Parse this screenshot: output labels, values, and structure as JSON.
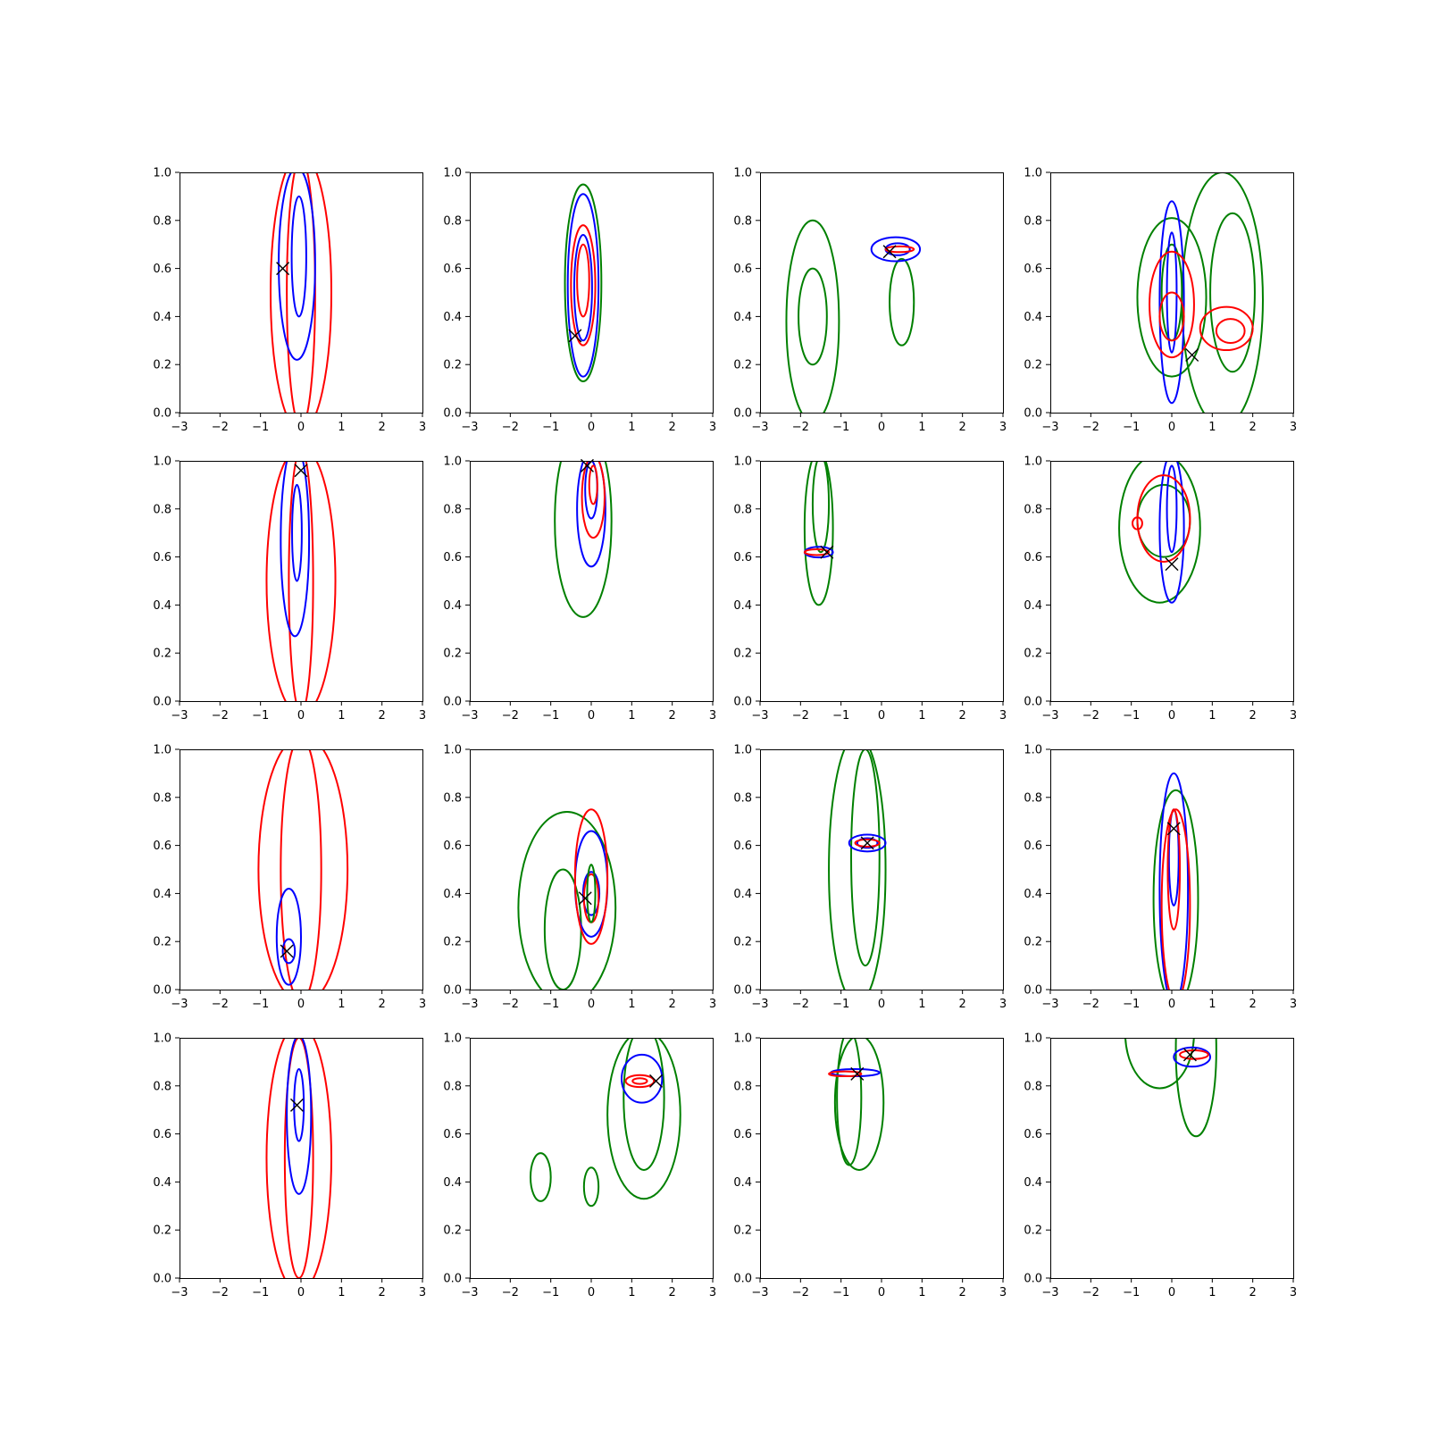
{
  "chart_data": {
    "type": "contour-grid",
    "rows": 4,
    "cols": 4,
    "xlim": [
      -3,
      3
    ],
    "ylim": [
      0,
      1
    ],
    "xticks": [
      "−3",
      "−2",
      "−1",
      "0",
      "1",
      "2",
      "3"
    ],
    "yticks": [
      "0.0",
      "0.2",
      "0.4",
      "0.6",
      "0.8",
      "1.0"
    ],
    "colors": {
      "blue": "#0000ff",
      "red": "#ff0000",
      "green": "#008000",
      "marker": "#000000"
    },
    "panels": [
      {
        "marker": [
          -0.45,
          0.6
        ],
        "contours": [
          {
            "color": "red",
            "cx": 0.0,
            "cy": 0.5,
            "rx": 0.75,
            "ry": 0.58
          },
          {
            "color": "red",
            "cx": 0.0,
            "cy": 0.5,
            "rx": 0.35,
            "ry": 0.56
          },
          {
            "color": "blue",
            "cx": -0.1,
            "cy": 0.62,
            "rx": 0.45,
            "ry": 0.4
          },
          {
            "color": "blue",
            "cx": -0.05,
            "cy": 0.65,
            "rx": 0.18,
            "ry": 0.25
          }
        ]
      },
      {
        "marker": [
          -0.4,
          0.32
        ],
        "contours": [
          {
            "color": "green",
            "cx": -0.2,
            "cy": 0.54,
            "rx": 0.45,
            "ry": 0.41
          },
          {
            "color": "blue",
            "cx": -0.2,
            "cy": 0.53,
            "rx": 0.38,
            "ry": 0.38
          },
          {
            "color": "blue",
            "cx": -0.2,
            "cy": 0.52,
            "rx": 0.22,
            "ry": 0.22
          },
          {
            "color": "red",
            "cx": -0.2,
            "cy": 0.53,
            "rx": 0.3,
            "ry": 0.25
          },
          {
            "color": "red",
            "cx": -0.2,
            "cy": 0.55,
            "rx": 0.15,
            "ry": 0.15
          }
        ]
      },
      {
        "marker": [
          0.2,
          0.67
        ],
        "contours": [
          {
            "color": "green",
            "cx": -1.7,
            "cy": 0.38,
            "rx": 0.65,
            "ry": 0.42
          },
          {
            "color": "green",
            "cx": -1.7,
            "cy": 0.4,
            "rx": 0.35,
            "ry": 0.2
          },
          {
            "color": "green",
            "cx": 0.5,
            "cy": 0.46,
            "rx": 0.3,
            "ry": 0.18
          },
          {
            "color": "blue",
            "cx": 0.35,
            "cy": 0.68,
            "rx": 0.6,
            "ry": 0.05
          },
          {
            "color": "blue",
            "cx": 0.4,
            "cy": 0.68,
            "rx": 0.3,
            "ry": 0.025
          },
          {
            "color": "red",
            "cx": 0.45,
            "cy": 0.68,
            "rx": 0.35,
            "ry": 0.012
          }
        ]
      },
      {
        "marker": [
          0.5,
          0.24
        ],
        "contours": [
          {
            "color": "green",
            "cx": 1.25,
            "cy": 0.47,
            "rx": 1.0,
            "ry": 0.53
          },
          {
            "color": "green",
            "cx": 1.5,
            "cy": 0.5,
            "rx": 0.55,
            "ry": 0.33
          },
          {
            "color": "green",
            "cx": 0.0,
            "cy": 0.48,
            "rx": 0.85,
            "ry": 0.33
          },
          {
            "color": "green",
            "cx": 0.0,
            "cy": 0.5,
            "rx": 0.25,
            "ry": 0.2
          },
          {
            "color": "blue",
            "cx": 0.0,
            "cy": 0.46,
            "rx": 0.3,
            "ry": 0.42
          },
          {
            "color": "blue",
            "cx": 0.0,
            "cy": 0.5,
            "rx": 0.12,
            "ry": 0.25
          },
          {
            "color": "red",
            "cx": 0.0,
            "cy": 0.45,
            "rx": 0.55,
            "ry": 0.22
          },
          {
            "color": "red",
            "cx": 0.0,
            "cy": 0.4,
            "rx": 0.3,
            "ry": 0.1
          },
          {
            "color": "red",
            "cx": 1.35,
            "cy": 0.35,
            "rx": 0.65,
            "ry": 0.09
          },
          {
            "color": "red",
            "cx": 1.45,
            "cy": 0.34,
            "rx": 0.35,
            "ry": 0.05
          }
        ]
      },
      {
        "marker": [
          0.0,
          0.96
        ],
        "contours": [
          {
            "color": "red",
            "cx": 0.0,
            "cy": 0.5,
            "rx": 0.85,
            "ry": 0.56
          },
          {
            "color": "red",
            "cx": 0.0,
            "cy": 0.5,
            "rx": 0.3,
            "ry": 0.55
          },
          {
            "color": "blue",
            "cx": -0.15,
            "cy": 0.67,
            "rx": 0.35,
            "ry": 0.4
          },
          {
            "color": "blue",
            "cx": -0.1,
            "cy": 0.7,
            "rx": 0.12,
            "ry": 0.2
          }
        ]
      },
      {
        "marker": [
          -0.1,
          0.98
        ],
        "contours": [
          {
            "color": "green",
            "cx": -0.2,
            "cy": 0.75,
            "rx": 0.7,
            "ry": 0.4
          },
          {
            "color": "blue",
            "cx": 0.0,
            "cy": 0.8,
            "rx": 0.35,
            "ry": 0.24
          },
          {
            "color": "blue",
            "cx": 0.0,
            "cy": 0.88,
            "rx": 0.15,
            "ry": 0.12
          },
          {
            "color": "red",
            "cx": 0.05,
            "cy": 0.85,
            "rx": 0.28,
            "ry": 0.17
          },
          {
            "color": "red",
            "cx": 0.05,
            "cy": 0.9,
            "rx": 0.1,
            "ry": 0.08
          }
        ]
      },
      {
        "marker": [
          -1.35,
          0.62
        ],
        "contours": [
          {
            "color": "green",
            "cx": -1.55,
            "cy": 0.72,
            "rx": 0.35,
            "ry": 0.32
          },
          {
            "color": "green",
            "cx": -1.5,
            "cy": 0.82,
            "rx": 0.2,
            "ry": 0.2
          },
          {
            "color": "blue",
            "cx": -1.55,
            "cy": 0.62,
            "rx": 0.35,
            "ry": 0.022
          },
          {
            "color": "red",
            "cx": -1.6,
            "cy": 0.62,
            "rx": 0.3,
            "ry": 0.012
          }
        ]
      },
      {
        "marker": [
          0.0,
          0.57
        ],
        "contours": [
          {
            "color": "green",
            "cx": -0.3,
            "cy": 0.72,
            "rx": 1.0,
            "ry": 0.31
          },
          {
            "color": "green",
            "cx": -0.2,
            "cy": 0.75,
            "rx": 0.65,
            "ry": 0.15
          },
          {
            "color": "blue",
            "cx": 0.0,
            "cy": 0.72,
            "rx": 0.3,
            "ry": 0.31
          },
          {
            "color": "blue",
            "cx": 0.0,
            "cy": 0.8,
            "rx": 0.12,
            "ry": 0.18
          },
          {
            "color": "red",
            "cx": -0.2,
            "cy": 0.76,
            "rx": 0.65,
            "ry": 0.18
          },
          {
            "color": "red",
            "cx": -0.85,
            "cy": 0.74,
            "rx": 0.12,
            "ry": 0.025
          }
        ]
      },
      {
        "marker": [
          -0.35,
          0.16
        ],
        "contours": [
          {
            "color": "red",
            "cx": 0.05,
            "cy": 0.5,
            "rx": 1.1,
            "ry": 0.56
          },
          {
            "color": "red",
            "cx": 0.0,
            "cy": 0.5,
            "rx": 0.5,
            "ry": 0.55
          },
          {
            "color": "blue",
            "cx": -0.3,
            "cy": 0.22,
            "rx": 0.3,
            "ry": 0.2
          },
          {
            "color": "blue",
            "cx": -0.3,
            "cy": 0.16,
            "rx": 0.15,
            "ry": 0.05
          }
        ]
      },
      {
        "marker": [
          -0.15,
          0.38
        ],
        "contours": [
          {
            "color": "green",
            "cx": -0.6,
            "cy": 0.34,
            "rx": 1.2,
            "ry": 0.4
          },
          {
            "color": "green",
            "cx": -0.7,
            "cy": 0.25,
            "rx": 0.45,
            "ry": 0.25
          },
          {
            "color": "blue",
            "cx": 0.0,
            "cy": 0.44,
            "rx": 0.4,
            "ry": 0.22
          },
          {
            "color": "blue",
            "cx": 0.0,
            "cy": 0.4,
            "rx": 0.2,
            "ry": 0.09
          },
          {
            "color": "red",
            "cx": 0.0,
            "cy": 0.47,
            "rx": 0.4,
            "ry": 0.28
          },
          {
            "color": "red",
            "cx": 0.0,
            "cy": 0.38,
            "rx": 0.18,
            "ry": 0.1
          },
          {
            "color": "green",
            "cx": 0.0,
            "cy": 0.4,
            "rx": 0.1,
            "ry": 0.12
          }
        ]
      },
      {
        "marker": [
          -0.35,
          0.61
        ],
        "contours": [
          {
            "color": "green",
            "cx": -0.6,
            "cy": 0.5,
            "rx": 0.7,
            "ry": 0.56
          },
          {
            "color": "green",
            "cx": -0.4,
            "cy": 0.55,
            "rx": 0.35,
            "ry": 0.45
          },
          {
            "color": "blue",
            "cx": -0.35,
            "cy": 0.61,
            "rx": 0.45,
            "ry": 0.035
          },
          {
            "color": "blue",
            "cx": -0.35,
            "cy": 0.61,
            "rx": 0.25,
            "ry": 0.02
          },
          {
            "color": "red",
            "cx": -0.35,
            "cy": 0.61,
            "rx": 0.3,
            "ry": 0.015
          }
        ]
      },
      {
        "marker": [
          0.05,
          0.67
        ],
        "contours": [
          {
            "color": "green",
            "cx": 0.1,
            "cy": 0.38,
            "rx": 0.55,
            "ry": 0.45
          },
          {
            "color": "blue",
            "cx": 0.05,
            "cy": 0.42,
            "rx": 0.35,
            "ry": 0.48
          },
          {
            "color": "blue",
            "cx": 0.05,
            "cy": 0.55,
            "rx": 0.12,
            "ry": 0.2
          },
          {
            "color": "red",
            "cx": 0.1,
            "cy": 0.35,
            "rx": 0.35,
            "ry": 0.4
          },
          {
            "color": "red",
            "cx": 0.05,
            "cy": 0.5,
            "rx": 0.15,
            "ry": 0.25
          }
        ]
      },
      {
        "marker": [
          -0.1,
          0.72
        ],
        "contours": [
          {
            "color": "red",
            "cx": -0.05,
            "cy": 0.5,
            "rx": 0.8,
            "ry": 0.56
          },
          {
            "color": "red",
            "cx": -0.05,
            "cy": 0.5,
            "rx": 0.35,
            "ry": 0.5
          },
          {
            "color": "blue",
            "cx": -0.05,
            "cy": 0.68,
            "rx": 0.3,
            "ry": 0.33
          },
          {
            "color": "blue",
            "cx": -0.05,
            "cy": 0.72,
            "rx": 0.12,
            "ry": 0.15
          }
        ]
      },
      {
        "marker": [
          1.6,
          0.82
        ],
        "contours": [
          {
            "color": "green",
            "cx": 1.3,
            "cy": 0.68,
            "rx": 0.9,
            "ry": 0.35
          },
          {
            "color": "green",
            "cx": 1.3,
            "cy": 0.75,
            "rx": 0.5,
            "ry": 0.3
          },
          {
            "color": "green",
            "cx": -1.25,
            "cy": 0.42,
            "rx": 0.25,
            "ry": 0.1
          },
          {
            "color": "green",
            "cx": 0.0,
            "cy": 0.38,
            "rx": 0.18,
            "ry": 0.08
          },
          {
            "color": "blue",
            "cx": 1.25,
            "cy": 0.83,
            "rx": 0.5,
            "ry": 0.1
          },
          {
            "color": "red",
            "cx": 1.2,
            "cy": 0.82,
            "rx": 0.35,
            "ry": 0.025
          },
          {
            "color": "red",
            "cx": 1.2,
            "cy": 0.82,
            "rx": 0.18,
            "ry": 0.012
          }
        ]
      },
      {
        "marker": [
          -0.6,
          0.85
        ],
        "contours": [
          {
            "color": "green",
            "cx": -0.55,
            "cy": 0.73,
            "rx": 0.6,
            "ry": 0.28
          },
          {
            "color": "green",
            "cx": -0.8,
            "cy": 0.75,
            "rx": 0.3,
            "ry": 0.28
          },
          {
            "color": "blue",
            "cx": -0.65,
            "cy": 0.855,
            "rx": 0.6,
            "ry": 0.015
          },
          {
            "color": "red",
            "cx": -0.9,
            "cy": 0.85,
            "rx": 0.4,
            "ry": 0.01
          }
        ]
      },
      {
        "marker": [
          0.45,
          0.93
        ],
        "contours": [
          {
            "color": "green",
            "cx": -0.3,
            "cy": 1.02,
            "rx": 0.85,
            "ry": 0.23
          },
          {
            "color": "green",
            "cx": 0.6,
            "cy": 0.95,
            "rx": 0.5,
            "ry": 0.36
          },
          {
            "color": "blue",
            "cx": 0.5,
            "cy": 0.92,
            "rx": 0.45,
            "ry": 0.04
          },
          {
            "color": "red",
            "cx": 0.55,
            "cy": 0.93,
            "rx": 0.35,
            "ry": 0.018
          }
        ]
      }
    ]
  }
}
